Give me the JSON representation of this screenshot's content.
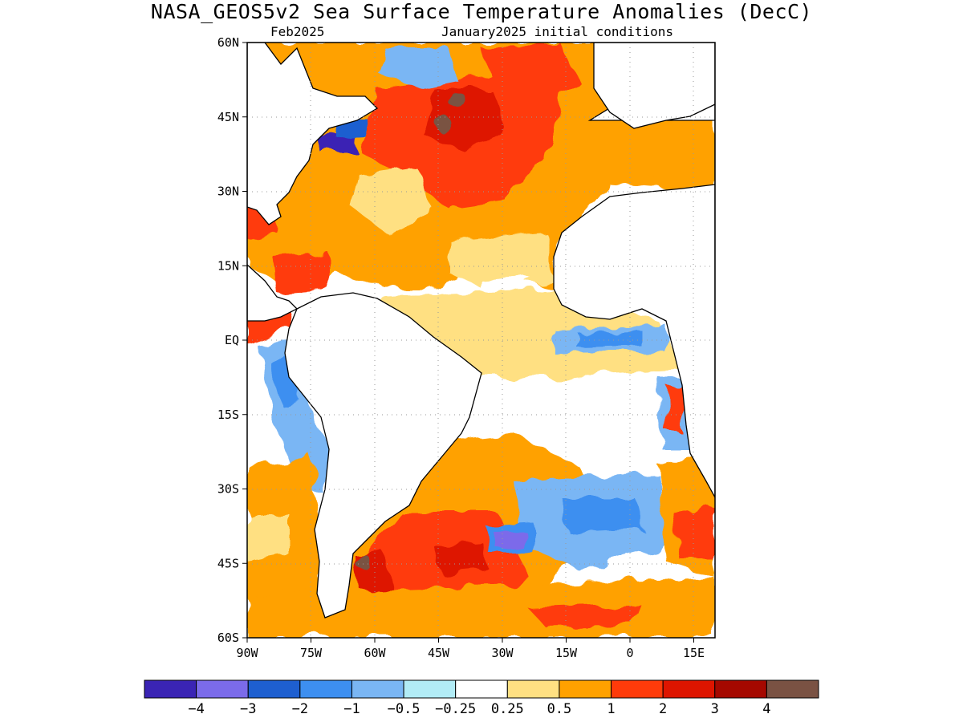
{
  "title": "NASA_GEOS5v2 Sea Surface Temperature Anomalies (DecC)",
  "subtitle_left": "Feb2025",
  "subtitle_right": "January2025 initial conditions",
  "map": {
    "lon_range": [
      -90,
      20
    ],
    "lat_range": [
      -60,
      60
    ],
    "grid": "dotted",
    "y_ticks": [
      {
        "value": 60,
        "label": "60N"
      },
      {
        "value": 45,
        "label": "45N"
      },
      {
        "value": 30,
        "label": "30N"
      },
      {
        "value": 15,
        "label": "15N"
      },
      {
        "value": 0,
        "label": "EQ"
      },
      {
        "value": -15,
        "label": "15S"
      },
      {
        "value": -30,
        "label": "30S"
      },
      {
        "value": -45,
        "label": "45S"
      },
      {
        "value": -60,
        "label": "60S"
      }
    ],
    "x_ticks": [
      {
        "value": -90,
        "label": "90W"
      },
      {
        "value": -75,
        "label": "75W"
      },
      {
        "value": -60,
        "label": "60W"
      },
      {
        "value": -45,
        "label": "45W"
      },
      {
        "value": -30,
        "label": "30W"
      },
      {
        "value": -15,
        "label": "15W"
      },
      {
        "value": 0,
        "label": "0"
      },
      {
        "value": 15,
        "label": "15E"
      }
    ]
  },
  "colorbar": {
    "colors": [
      "#3a24b4",
      "#7b6bea",
      "#1e5fd0",
      "#3d8ff0",
      "#7ab6f4",
      "#b2ecf6",
      "#ffffff",
      "#ffe082",
      "#ffa100",
      "#ff3b0a",
      "#de1500",
      "#a50800",
      "#7a5243"
    ],
    "labels": [
      "−4",
      "−3",
      "−2",
      "−1",
      "−0.5",
      "−0.25",
      "0.25",
      "0.5",
      "1",
      "2",
      "3",
      "4"
    ]
  }
}
